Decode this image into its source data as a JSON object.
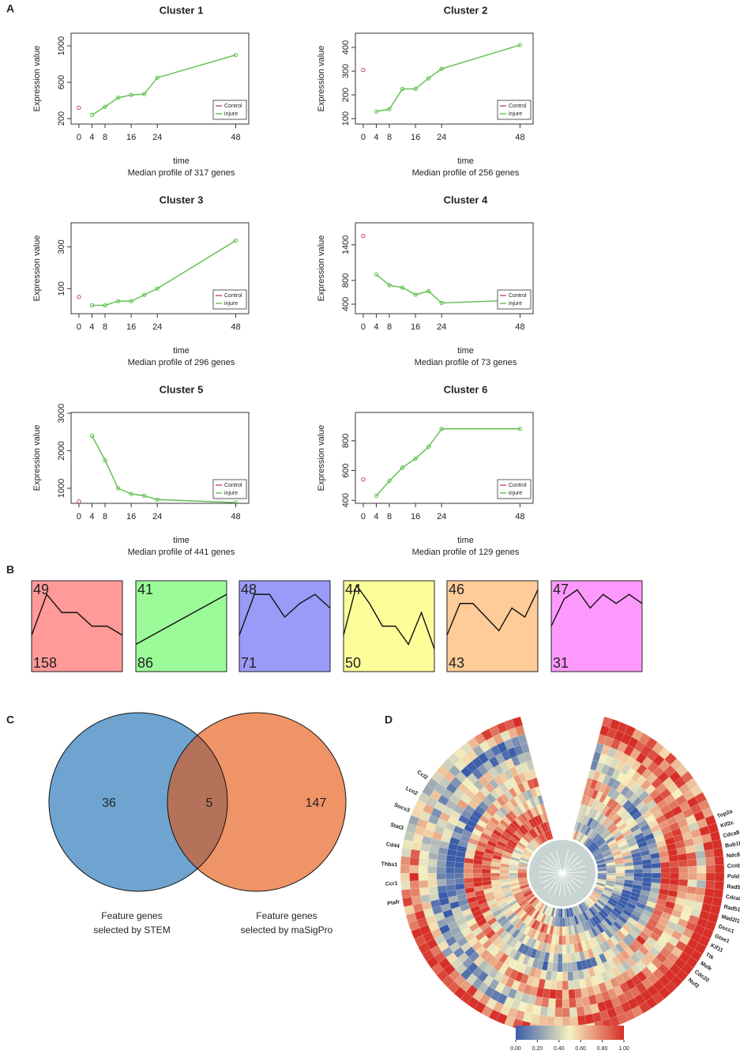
{
  "panel_labels": [
    "A",
    "B",
    "C",
    "D"
  ],
  "chart_data": [
    {
      "type": "line",
      "title": "Cluster 1",
      "subtitle": "Median profile of 317 genes",
      "xlabel": "time",
      "ylabel": "Expression value",
      "xlim": [
        -2.4,
        52
      ],
      "xticks": [
        0,
        4,
        8,
        16,
        24,
        48
      ],
      "ylim": [
        140,
        1140
      ],
      "yticks": [
        200,
        600,
        1000
      ],
      "series": [
        {
          "name": "Control",
          "color": "#c8466e",
          "x": [
            0
          ],
          "values": [
            320
          ]
        },
        {
          "name": "injure",
          "color": "#5cbf4a",
          "x": [
            4,
            8,
            12,
            16,
            20,
            24,
            48
          ],
          "values": [
            240,
            330,
            430,
            460,
            470,
            650,
            900
          ]
        }
      ]
    },
    {
      "type": "line",
      "title": "Cluster 2",
      "subtitle": "Median profile of 256 genes",
      "xlabel": "time",
      "ylabel": "Expression value",
      "xlim": [
        -2.4,
        52
      ],
      "xticks": [
        0,
        4,
        8,
        16,
        24,
        48
      ],
      "ylim": [
        77,
        460
      ],
      "yticks": [
        100,
        200,
        300,
        400
      ],
      "series": [
        {
          "name": "Control",
          "color": "#c8466e",
          "x": [
            0
          ],
          "values": [
            305
          ]
        },
        {
          "name": "injure",
          "color": "#5cbf4a",
          "x": [
            4,
            8,
            12,
            16,
            20,
            24,
            48
          ],
          "values": [
            130,
            140,
            225,
            225,
            270,
            310,
            410
          ]
        }
      ]
    },
    {
      "type": "line",
      "title": "Cluster 3",
      "subtitle": "Median profile of 296 genes",
      "xlabel": "time",
      "ylabel": "Expression value",
      "xlim": [
        -2.4,
        52
      ],
      "xticks": [
        0,
        4,
        8,
        16,
        24,
        48
      ],
      "ylim": [
        -20,
        415
      ],
      "yticks": [
        100,
        300
      ],
      "series": [
        {
          "name": "Control",
          "color": "#c8466e",
          "x": [
            0
          ],
          "values": [
            60
          ]
        },
        {
          "name": "injure",
          "color": "#5cbf4a",
          "x": [
            4,
            8,
            12,
            16,
            20,
            24,
            48
          ],
          "values": [
            20,
            20,
            40,
            40,
            70,
            100,
            330
          ]
        }
      ]
    },
    {
      "type": "line",
      "title": "Cluster 4",
      "subtitle": "Median profile of 73 genes",
      "xlabel": "time",
      "ylabel": "Expression value",
      "xlim": [
        -2.4,
        52
      ],
      "xticks": [
        0,
        4,
        8,
        16,
        24,
        48
      ],
      "ylim": [
        240,
        1770
      ],
      "yticks": [
        400,
        800,
        1400
      ],
      "series": [
        {
          "name": "Control",
          "color": "#c8466e",
          "x": [
            0
          ],
          "values": [
            1550
          ]
        },
        {
          "name": "injure",
          "color": "#5cbf4a",
          "x": [
            4,
            8,
            12,
            16,
            20,
            24,
            48
          ],
          "values": [
            900,
            720,
            680,
            560,
            620,
            420,
            470
          ]
        }
      ]
    },
    {
      "type": "line",
      "title": "Cluster 5",
      "subtitle": "Median profile of 441 genes",
      "xlabel": "time",
      "ylabel": "Expression value",
      "xlim": [
        -2.4,
        52
      ],
      "xticks": [
        0,
        4,
        8,
        16,
        24,
        48
      ],
      "ylim": [
        600,
        3020
      ],
      "yticks": [
        1000,
        2000,
        3000
      ],
      "series": [
        {
          "name": "Control",
          "color": "#c8466e",
          "x": [
            0
          ],
          "values": [
            650
          ]
        },
        {
          "name": "injure",
          "color": "#5cbf4a",
          "x": [
            4,
            8,
            12,
            16,
            20,
            24,
            48
          ],
          "values": [
            2400,
            1750,
            1000,
            850,
            800,
            700,
            620
          ]
        }
      ]
    },
    {
      "type": "line",
      "title": "Cluster 6",
      "subtitle": "Median profile of 129 genes",
      "xlabel": "time",
      "ylabel": "Expression value",
      "xlim": [
        -2.4,
        52
      ],
      "xticks": [
        0,
        4,
        8,
        16,
        24,
        48
      ],
      "ylim": [
        380,
        990
      ],
      "yticks": [
        400,
        600,
        800
      ],
      "series": [
        {
          "name": "Control",
          "color": "#c8466e",
          "x": [
            0
          ],
          "values": [
            540
          ]
        },
        {
          "name": "injure",
          "color": "#5cbf4a",
          "x": [
            4,
            8,
            12,
            16,
            20,
            24,
            48
          ],
          "values": [
            430,
            530,
            620,
            680,
            760,
            880,
            880
          ]
        }
      ]
    }
  ],
  "stem_profiles": [
    {
      "id": 49,
      "count": 158,
      "color": "#ff9a99",
      "profile": [
        0.4,
        0.85,
        0.65,
        0.65,
        0.5,
        0.5,
        0.4
      ]
    },
    {
      "id": 41,
      "count": 86,
      "color": "#9bfb98",
      "profile": [
        0.3,
        0.85
      ]
    },
    {
      "id": 48,
      "count": 71,
      "color": "#9a9bf8",
      "profile": [
        0.4,
        0.85,
        0.85,
        0.6,
        0.75,
        0.85,
        0.7
      ]
    },
    {
      "id": 44,
      "count": 50,
      "color": "#fdfe99",
      "profile": [
        0.4,
        0.95,
        0.75,
        0.5,
        0.5,
        0.3,
        0.65,
        0.25
      ]
    },
    {
      "id": 46,
      "count": 43,
      "color": "#fecb99",
      "profile": [
        0.4,
        0.75,
        0.75,
        0.6,
        0.45,
        0.7,
        0.6,
        0.9
      ]
    },
    {
      "id": 47,
      "count": 31,
      "color": "#fd99fd",
      "profile": [
        0.5,
        0.8,
        0.9,
        0.7,
        0.85,
        0.75,
        0.85,
        0.75
      ]
    }
  ],
  "venn": {
    "left": {
      "label": [
        "Feature genes",
        "selected by STEM"
      ],
      "color": "#6ea4cf",
      "count": 36
    },
    "right": {
      "label": [
        "Feature genes",
        "selected by maSigPro"
      ],
      "color": "#ef9466",
      "count": 147
    },
    "both": {
      "color": "#b5725a",
      "count": 5
    }
  },
  "heatmap": {
    "genes_right": [
      "Top2a",
      "Kif2c",
      "Cdca8",
      "Bub1b",
      "Ndc80",
      "Ccnb2",
      "Pold1",
      "Rad54b",
      "Cdca5",
      "Rad51c",
      "Mad2l1",
      "Dscc1",
      "Gtse1",
      "Kif11",
      "Ttk",
      "Melk",
      "Cdc20",
      "Nuf2"
    ],
    "genes_left": [
      "Ptafr",
      "Ccr1",
      "Thbs1",
      "Cd44",
      "Stat3",
      "Socs3",
      "Lcn2",
      "Ccl2"
    ],
    "colorbar": {
      "colors": [
        "#3a5ca9",
        "#f6f1c0",
        "#d62f27"
      ],
      "ticks": [
        {
          "value": 0,
          "label": "0.00"
        },
        {
          "value": 0.2,
          "label": "0.20"
        },
        {
          "value": 0.4,
          "label": "0.40"
        },
        {
          "value": 0.6,
          "label": "0.60"
        },
        {
          "value": 0.8,
          "label": "0.80"
        },
        {
          "value": 1,
          "label": "1.00"
        }
      ]
    }
  }
}
